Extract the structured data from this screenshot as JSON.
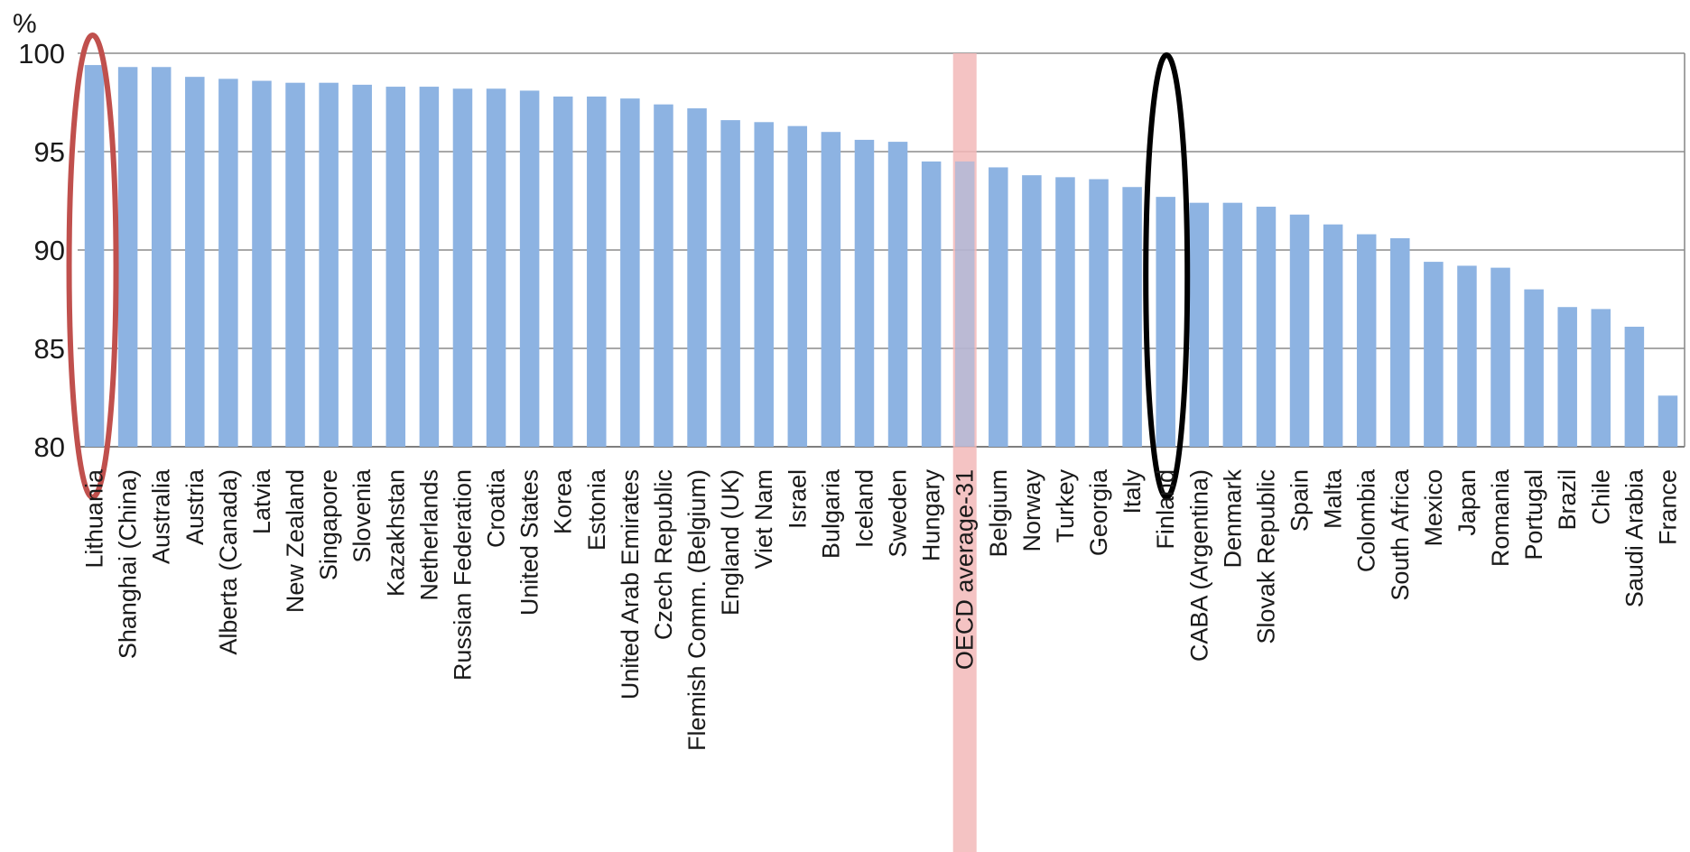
{
  "chart_data": {
    "type": "bar",
    "unit_label": "%",
    "ylim": [
      80,
      100
    ],
    "yticks": [
      80,
      85,
      90,
      95,
      100
    ],
    "grid": true,
    "bar_color": "#8db3e2",
    "highlight_band_color": "#f2b8b8",
    "red_ellipse_color": "#c0504d",
    "black_ellipse_color": "#000000",
    "categories": [
      "Lithuania",
      "Shanghai (China)",
      "Australia",
      "Austria",
      "Alberta (Canada)",
      "Latvia",
      "New Zealand",
      "Singapore",
      "Slovenia",
      "Kazakhstan",
      "Netherlands",
      "Russian Federation",
      "Croatia",
      "United States",
      "Korea",
      "Estonia",
      "United Arab Emirates",
      "Czech Republic",
      "Flemish Comm. (Belgium)",
      "England (UK)",
      "Viet Nam",
      "Israel",
      "Bulgaria",
      "Iceland",
      "Sweden",
      "Hungary",
      "OECD average-31",
      "Belgium",
      "Norway",
      "Turkey",
      "Georgia",
      "Italy",
      "Finland",
      "CABA (Argentina)",
      "Denmark",
      "Slovak Republic",
      "Spain",
      "Malta",
      "Colombia",
      "South Africa",
      "Mexico",
      "Japan",
      "Romania",
      "Portugal",
      "Brazil",
      "Chile",
      "Saudi Arabia",
      "France"
    ],
    "values": [
      99.4,
      99.3,
      99.3,
      98.8,
      98.7,
      98.6,
      98.5,
      98.5,
      98.4,
      98.3,
      98.3,
      98.2,
      98.2,
      98.1,
      97.8,
      97.8,
      97.7,
      97.4,
      97.2,
      96.6,
      96.5,
      96.3,
      96.0,
      95.6,
      95.5,
      94.5,
      94.5,
      94.2,
      93.8,
      93.7,
      93.6,
      93.2,
      92.7,
      92.4,
      92.4,
      92.2,
      91.8,
      91.3,
      90.8,
      90.6,
      89.4,
      89.2,
      89.1,
      88.0,
      87.1,
      87.0,
      86.1,
      82.6
    ],
    "highlighted_category": "OECD average-31",
    "circled_categories": [
      "Lithuania",
      "Finland"
    ]
  }
}
